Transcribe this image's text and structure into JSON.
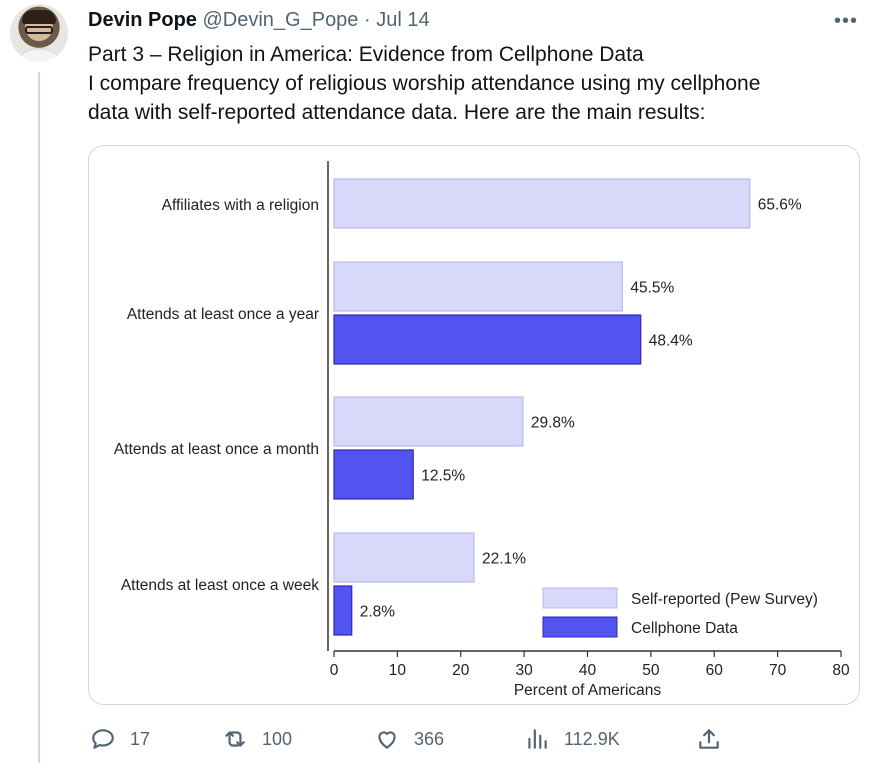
{
  "tweet": {
    "author_name": "Devin Pope",
    "handle": "@Devin_G_Pope",
    "separator": "·",
    "date": "Jul 14",
    "more_label": "•••",
    "lines": [
      "Part 3 – Religion in America: Evidence from Cellphone Data",
      "I compare frequency of religious worship attendance using my cellphone",
      "data with self-reported attendance data. Here are the main results:"
    ]
  },
  "chart_data": {
    "type": "bar",
    "orientation": "horizontal",
    "categories": [
      "Affiliates with a religion",
      "Attends at least once a year",
      "Attends at least once a month",
      "Attends at least once a week"
    ],
    "series": [
      {
        "name": "Self-reported (Pew Survey)",
        "color": "#d8d8fb",
        "values": [
          65.6,
          45.5,
          29.8,
          22.1
        ],
        "labels": [
          "65.6%",
          "45.5%",
          "29.8%",
          "22.1%"
        ]
      },
      {
        "name": "Cellphone Data",
        "color": "#5353f0",
        "values": [
          null,
          48.4,
          12.5,
          2.8
        ],
        "labels": [
          "",
          "48.4%",
          "12.5%",
          "2.8%"
        ]
      }
    ],
    "xlabel": "Percent of Americans",
    "xlim": [
      0,
      80
    ],
    "xticks": [
      "0",
      "10",
      "20",
      "30",
      "40",
      "50",
      "60",
      "70",
      "80"
    ],
    "legend_position": "bottom-right",
    "grid": false
  },
  "actions": {
    "reply_count": "17",
    "retweet_count": "100",
    "like_count": "366",
    "views_count": "112.9K"
  }
}
